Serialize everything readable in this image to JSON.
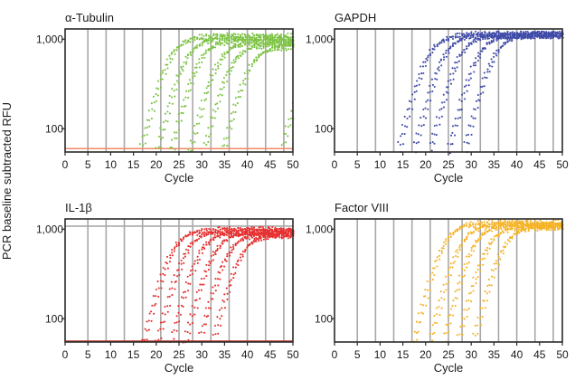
{
  "figure": {
    "ylabel": "PCR baseline subtracted RFU"
  },
  "colors": {
    "grid": "#a8a8a8",
    "frame": "#2a2a2a",
    "threshold": "#f08a6a",
    "tubulin": "#7cc242",
    "gapdh": "#3f4aa8",
    "il1b": "#e63030",
    "factor8": "#f5b324"
  },
  "chart_data": [
    {
      "type": "line",
      "title": "α-Tubulin",
      "xlabel": "Cycle",
      "ylabel": "PCR baseline subtracted RFU",
      "x_ticks": [
        0,
        5,
        10,
        15,
        20,
        25,
        30,
        35,
        40,
        45,
        50
      ],
      "xlim": [
        0,
        50
      ],
      "y_scale": "log",
      "y_ticks": [
        100,
        1000
      ],
      "y_tick_labels": [
        "100",
        "1,000"
      ],
      "ylim": [
        55,
        1300
      ],
      "grid": "vertical lines",
      "color": "tubulin",
      "threshold": 60,
      "series": [
        {
          "midpoint": 22.5,
          "plateau": 1100
        },
        {
          "midpoint": 26,
          "plateau": 1050
        },
        {
          "midpoint": 29,
          "plateau": 1000
        },
        {
          "midpoint": 33,
          "plateau": 950
        },
        {
          "midpoint": 36,
          "plateau": 900
        },
        {
          "midpoint": 40,
          "plateau": 850
        },
        {
          "midpoint": 53,
          "plateau": 900
        }
      ]
    },
    {
      "type": "line",
      "title": "GAPDH",
      "xlabel": "Cycle",
      "ylabel": "PCR baseline subtracted RFU",
      "x_ticks": [
        0,
        5,
        10,
        15,
        20,
        25,
        30,
        35,
        40,
        45,
        50
      ],
      "xlim": [
        0,
        50
      ],
      "y_scale": "log",
      "y_ticks": [
        100,
        1000
      ],
      "y_tick_labels": [
        "100",
        "1,000"
      ],
      "ylim": [
        55,
        1300
      ],
      "grid": "vertical lines",
      "color": "gapdh",
      "threshold": null,
      "series": [
        {
          "midpoint": 20,
          "plateau": 1150
        },
        {
          "midpoint": 23.5,
          "plateau": 1150
        },
        {
          "midpoint": 27,
          "plateau": 1150
        },
        {
          "midpoint": 31,
          "plateau": 1150
        },
        {
          "midpoint": 34.5,
          "plateau": 1150
        }
      ]
    },
    {
      "type": "line",
      "title": "IL-1β",
      "xlabel": "Cycle",
      "ylabel": "PCR baseline subtracted RFU",
      "x_ticks": [
        0,
        5,
        10,
        15,
        20,
        25,
        30,
        35,
        40,
        45,
        50
      ],
      "xlim": [
        0,
        50
      ],
      "y_scale": "log",
      "y_ticks": [
        100,
        1000
      ],
      "y_tick_labels": [
        "100",
        "1,000"
      ],
      "ylim": [
        55,
        1300
      ],
      "grid": "vertical lines",
      "color": "il1b",
      "threshold": 1080,
      "series": [
        {
          "midpoint": 23,
          "plateau": 1000
        },
        {
          "midpoint": 26,
          "plateau": 980
        },
        {
          "midpoint": 29,
          "plateau": 950
        },
        {
          "midpoint": 32,
          "plateau": 930
        },
        {
          "midpoint": 35,
          "plateau": 900
        },
        {
          "midpoint": 38,
          "plateau": 880
        }
      ]
    },
    {
      "type": "line",
      "title": "Factor VIII",
      "xlabel": "Cycle",
      "ylabel": "PCR baseline subtracted RFU",
      "x_ticks": [
        0,
        5,
        10,
        15,
        20,
        25,
        30,
        35,
        40,
        45,
        50
      ],
      "xlim": [
        0,
        50
      ],
      "y_scale": "log",
      "y_ticks": [
        100,
        1000
      ],
      "y_tick_labels": [
        "100",
        "1,000"
      ],
      "ylim": [
        55,
        1300
      ],
      "grid": "vertical lines",
      "color": "factor8",
      "threshold": null,
      "series": [
        {
          "midpoint": 23.5,
          "plateau": 1200
        },
        {
          "midpoint": 27,
          "plateau": 1150
        },
        {
          "midpoint": 30,
          "plateau": 1150
        },
        {
          "midpoint": 33,
          "plateau": 1100
        },
        {
          "midpoint": 36.5,
          "plateau": 1100
        }
      ]
    }
  ]
}
